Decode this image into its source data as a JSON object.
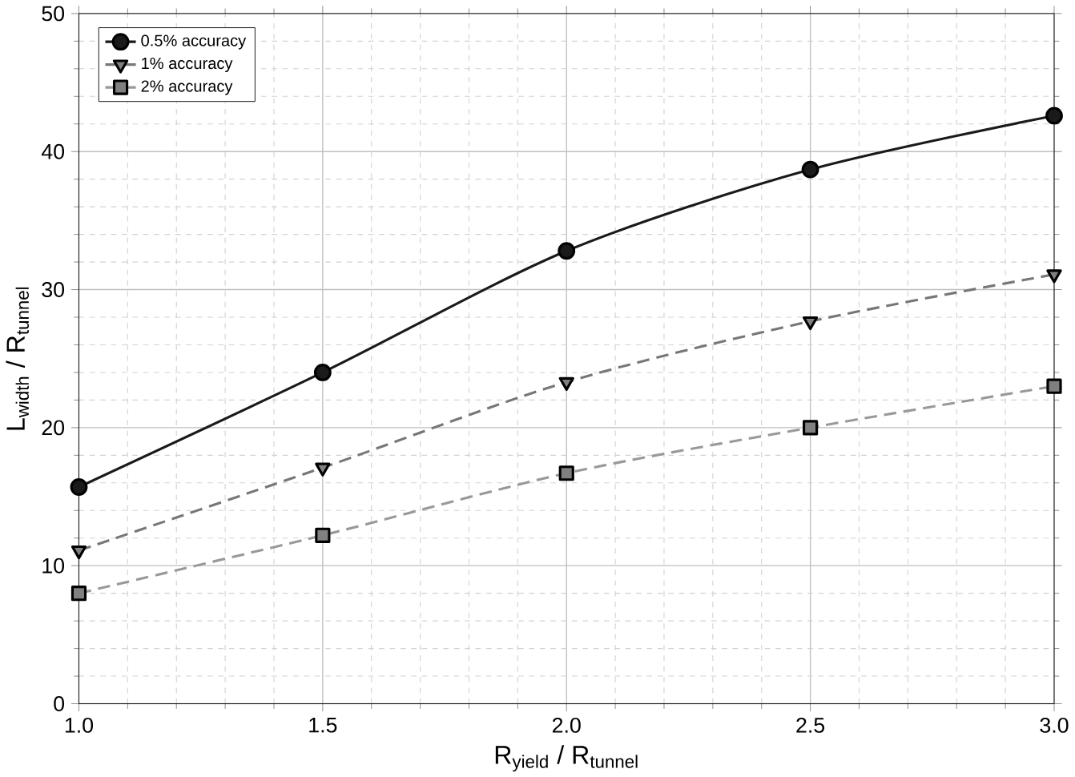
{
  "chart_data": {
    "type": "line",
    "xlabel": "R$_{yield}$ / R$_{tunnel}$",
    "ylabel": "L$_{width}$ / R$_{tunnel}$",
    "x": [
      1.0,
      1.5,
      2.0,
      2.5,
      3.0
    ],
    "series": [
      {
        "name": "0.5% accuracy",
        "color": "#1a1a1a",
        "marker": "circle",
        "line_style": "solid",
        "values": [
          15.7,
          24.0,
          32.8,
          38.7,
          42.6
        ]
      },
      {
        "name": "1% accuracy",
        "color": "#777777",
        "marker": "triangle",
        "line_style": "dashed",
        "values": [
          11.1,
          17.1,
          23.3,
          27.7,
          31.1
        ]
      },
      {
        "name": "2% accuracy",
        "color": "#999999",
        "marker": "square",
        "line_style": "dashed",
        "values": [
          8.0,
          12.2,
          16.7,
          20.0,
          23.0
        ]
      }
    ],
    "xlim": [
      1.0,
      3.0
    ],
    "ylim": [
      0,
      50
    ],
    "xticks": [
      {
        "value": 1.0,
        "label": "1.0"
      },
      {
        "value": 1.5,
        "label": "1.5"
      },
      {
        "value": 2.0,
        "label": "2.0"
      },
      {
        "value": 2.5,
        "label": "2.5"
      },
      {
        "value": 3.0,
        "label": "3.0"
      }
    ],
    "yticks": [
      0,
      10,
      20,
      30,
      40,
      50
    ],
    "grid": true,
    "legend": "top left"
  }
}
